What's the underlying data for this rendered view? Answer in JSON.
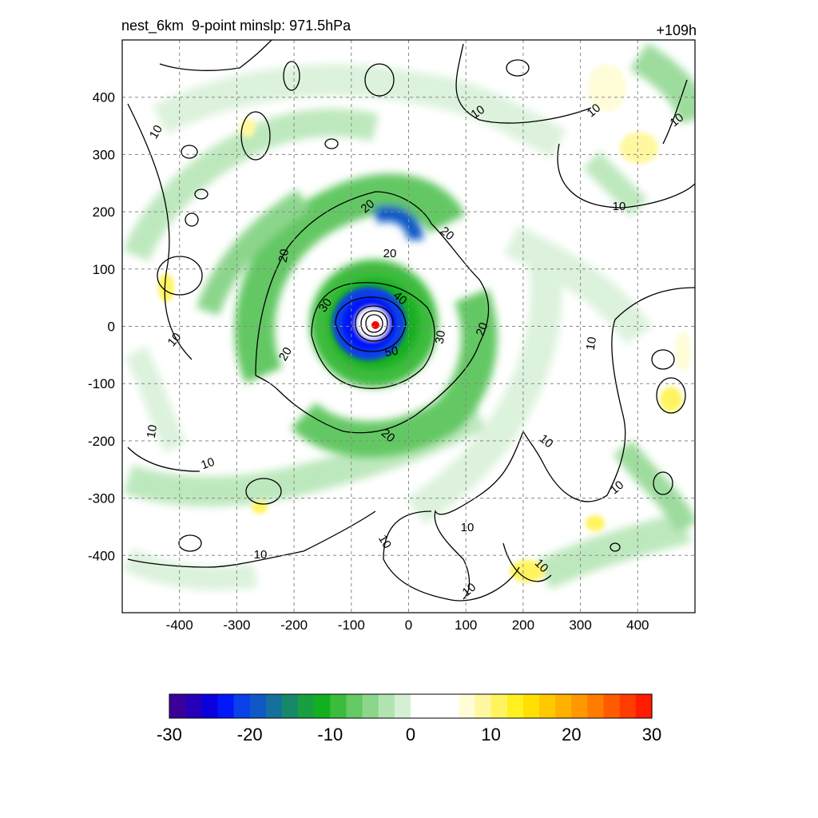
{
  "title_left": "nest_6km  9-point minslp: 971.5hPa",
  "title_right": "+109h",
  "chart_data": {
    "type": "heatmap",
    "title": "nest_6km  9-point minslp: 971.5hPa",
    "forecast_hour": "+109h",
    "xlim": [
      -500,
      500
    ],
    "ylim": [
      -500,
      500
    ],
    "x_ticks": [
      -400,
      -300,
      -200,
      -100,
      0,
      100,
      200,
      300,
      400
    ],
    "y_ticks": [
      400,
      300,
      200,
      100,
      0,
      -100,
      -200,
      -300,
      -400
    ],
    "grid": true,
    "colorbar": {
      "range": [
        -30,
        30
      ],
      "ticks": [
        -30,
        -20,
        -10,
        0,
        10,
        20,
        30
      ],
      "colors": [
        "#3b0098",
        "#2400b8",
        "#0c00dc",
        "#0018f8",
        "#0a40e8",
        "#1058c8",
        "#15709c",
        "#178868",
        "#18a040",
        "#12b020",
        "#3cbc3c",
        "#64c864",
        "#8cd68c",
        "#b2e4b2",
        "#d6f0d6",
        "#ffffff",
        "#ffffff",
        "#ffffff",
        "#fffcd8",
        "#fff8a0",
        "#fff460",
        "#fff020",
        "#ffe000",
        "#ffc800",
        "#ffb000",
        "#ff9800",
        "#ff7c00",
        "#ff5c00",
        "#ff3c00",
        "#ff1c00"
      ]
    },
    "contour_labels": [
      "10",
      "20",
      "30",
      "40",
      "50"
    ],
    "center_marker": {
      "x": -60,
      "y": 5,
      "color": "#ff0000"
    }
  }
}
